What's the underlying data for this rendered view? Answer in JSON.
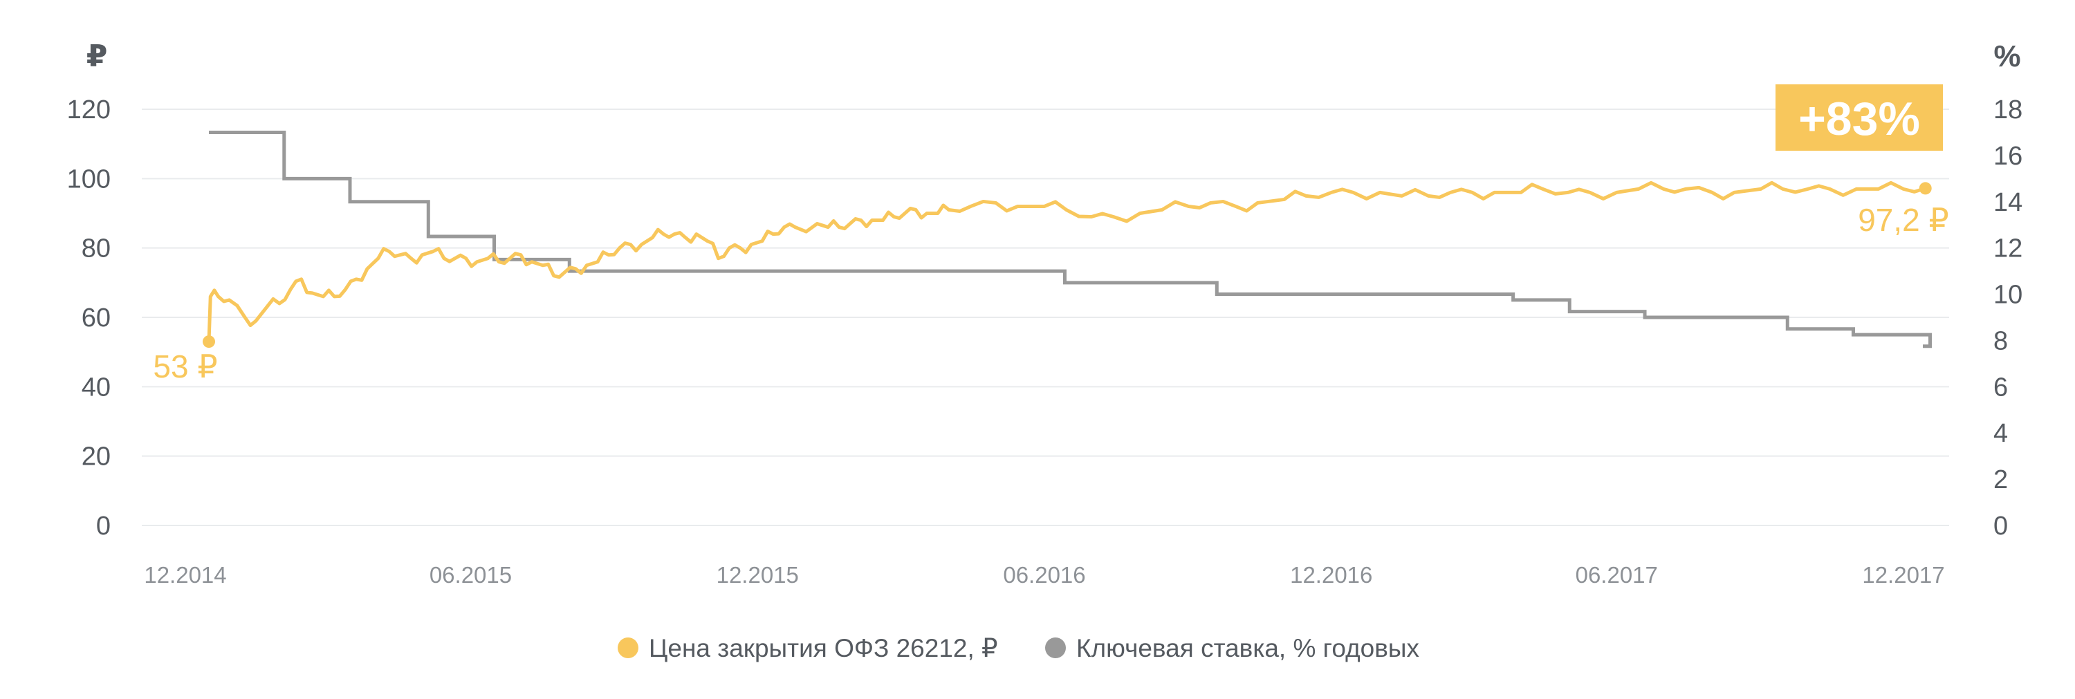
{
  "chart_data": {
    "type": "line",
    "title": "",
    "xlabel": "",
    "ylabel_left": "₽",
    "ylabel_right": "%",
    "x_ticks": [
      "12.2014",
      "06.2015",
      "12.2015",
      "06.2016",
      "12.2016",
      "06.2017",
      "12.2017"
    ],
    "y_left_ticks": [
      0,
      20,
      40,
      60,
      80,
      100,
      120
    ],
    "y_right_ticks": [
      0,
      2,
      4,
      6,
      8,
      10,
      12,
      14,
      16,
      18
    ],
    "ylim_left": [
      0,
      120
    ],
    "ylim_right": [
      0,
      18
    ],
    "grid": true,
    "legend_position": "bottom",
    "colors": {
      "price": "#f8c75c",
      "rate": "#999999",
      "grid": "#e9ebed",
      "text": "#555a60",
      "xtick": "#8d9196"
    },
    "series": [
      {
        "name": "Цена закрытия ОФЗ 26212, ₽",
        "axis": "left",
        "color": "#f8c75c",
        "x": [
          "2014-12-16",
          "2014-12-17",
          "2014-12-22",
          "2014-12-29",
          "2015-01-08",
          "2015-01-15",
          "2015-01-22",
          "2015-01-30",
          "2015-02-06",
          "2015-02-13",
          "2015-02-20",
          "2015-02-27",
          "2015-03-06",
          "2015-03-13",
          "2015-03-20",
          "2015-03-27",
          "2015-04-03",
          "2015-04-10",
          "2015-04-17",
          "2015-04-24",
          "2015-05-01",
          "2015-05-08",
          "2015-05-15",
          "2015-05-22",
          "2015-05-29",
          "2015-06-05",
          "2015-06-12",
          "2015-06-19",
          "2015-06-26",
          "2015-07-03",
          "2015-07-10",
          "2015-07-17",
          "2015-07-24",
          "2015-07-31",
          "2015-08-07",
          "2015-08-14",
          "2015-08-21",
          "2015-08-28",
          "2015-09-04",
          "2015-09-11",
          "2015-09-18",
          "2015-09-25",
          "2015-10-02",
          "2015-10-09",
          "2015-10-16",
          "2015-10-23",
          "2015-10-30",
          "2015-11-06",
          "2015-11-13",
          "2015-11-20",
          "2015-11-27",
          "2015-12-04",
          "2015-12-11",
          "2015-12-18",
          "2015-12-25",
          "2016-01-08",
          "2016-01-15",
          "2016-01-22",
          "2016-01-29",
          "2016-02-05",
          "2016-02-12",
          "2016-02-19",
          "2016-02-26",
          "2016-03-04",
          "2016-03-11",
          "2016-03-18",
          "2016-03-25",
          "2016-04-01",
          "2016-04-15",
          "2016-05-01",
          "2016-05-15",
          "2016-06-01",
          "2016-06-15",
          "2016-07-01",
          "2016-07-15",
          "2016-08-01",
          "2016-08-15",
          "2016-09-01",
          "2016-09-15",
          "2016-10-01",
          "2016-10-15",
          "2016-11-01",
          "2016-11-15",
          "2016-12-01",
          "2016-12-15",
          "2017-01-01",
          "2017-01-15",
          "2017-02-01",
          "2017-02-15",
          "2017-03-01",
          "2017-03-15",
          "2017-04-01",
          "2017-04-15",
          "2017-05-01",
          "2017-05-15",
          "2017-06-01",
          "2017-06-15",
          "2017-07-01",
          "2017-07-15",
          "2017-08-01",
          "2017-08-15",
          "2017-09-01",
          "2017-09-15",
          "2017-10-01",
          "2017-10-15",
          "2017-11-01",
          "2017-11-15",
          "2017-12-01",
          "2017-12-15"
        ],
        "values": [
          53,
          66,
          66,
          65,
          60,
          59,
          63,
          64,
          68,
          71,
          67,
          66,
          66,
          68,
          71,
          74,
          77,
          79,
          78,
          77,
          78,
          79,
          77,
          77,
          77,
          76,
          77,
          76,
          77,
          78,
          76,
          75,
          72,
          73,
          74,
          75,
          76,
          78,
          80,
          81,
          81,
          83,
          84,
          84,
          83,
          84,
          82,
          77,
          80,
          80,
          81,
          82,
          84,
          86,
          86,
          87,
          86,
          86,
          87,
          88,
          88,
          88,
          89,
          90,
          91,
          90,
          90,
          91,
          92,
          93,
          92,
          92,
          91,
          89,
          89,
          90,
          91,
          92,
          93,
          92,
          93,
          94,
          95,
          96,
          96,
          96,
          95,
          95,
          96,
          96,
          96,
          96,
          97,
          96,
          96,
          96,
          97,
          97,
          97,
          96,
          96,
          97,
          97,
          97,
          97,
          97,
          97,
          97,
          97.2
        ]
      },
      {
        "name": "Ключевая ставка, % годовых",
        "axis": "right",
        "color": "#999999",
        "step": true,
        "x": [
          "2014-12-16",
          "2015-02-02",
          "2015-03-16",
          "2015-05-05",
          "2015-06-16",
          "2015-08-03",
          "2016-06-14",
          "2016-09-19",
          "2017-03-27",
          "2017-05-02",
          "2017-06-19",
          "2017-09-18",
          "2017-10-30",
          "2017-12-18"
        ],
        "values": [
          17,
          15,
          14,
          12.5,
          11.5,
          11,
          10.5,
          10,
          9.75,
          9.25,
          9,
          8.5,
          8.25,
          7.75
        ]
      }
    ],
    "annotations": {
      "start_label": "53 ₽",
      "end_label": "97,2 ₽",
      "growth_badge": "+83%"
    }
  }
}
